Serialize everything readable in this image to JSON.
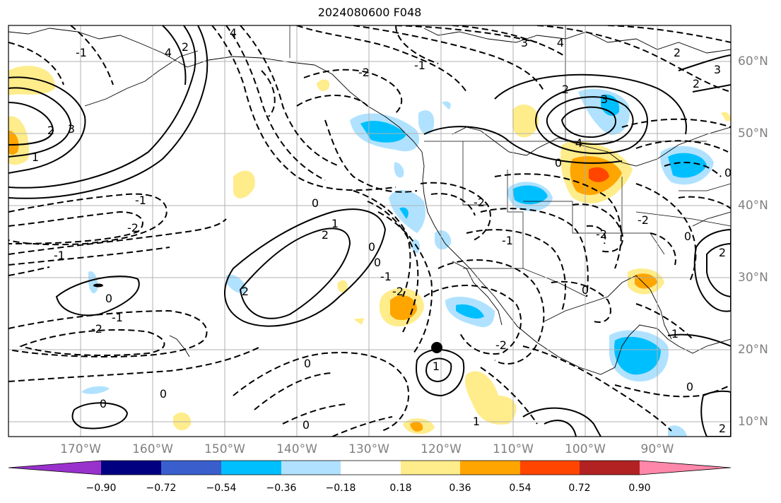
{
  "title": "2024080600 F048",
  "longitude_labels": [
    "170°W",
    "160°W",
    "150°W",
    "140°W",
    "130°W",
    "120°W",
    "110°W",
    "100°W",
    "90°W"
  ],
  "latitude_labels": [
    "60°N",
    "50°N",
    "40°N",
    "30°N",
    "20°N",
    "10°N"
  ],
  "colorbar": {
    "tick_labels": [
      "−0.90",
      "−0.72",
      "−0.54",
      "−0.36",
      "−0.18",
      "0.18",
      "0.36",
      "0.54",
      "0.72",
      "0.90"
    ],
    "colors": [
      "#9932cc",
      "#000080",
      "#3a5fcd",
      "#00bfff",
      "#b0e2ff",
      "#ffffff",
      "#ffec8b",
      "#ffa500",
      "#ff4500",
      "#b22222",
      "#ff88aa"
    ]
  },
  "contour_labels": [
    "-2",
    "-1",
    "0",
    "1",
    "2",
    "3",
    "4"
  ],
  "marker": "storm-center"
}
